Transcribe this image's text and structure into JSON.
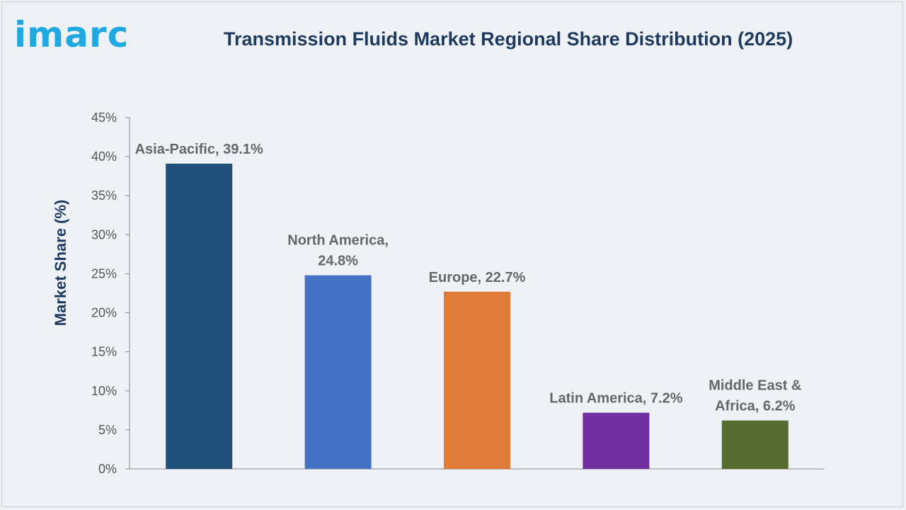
{
  "logo": {
    "text": "imarc"
  },
  "chart_data": {
    "type": "bar",
    "title": "Transmission Fluids Market Regional Share Distribution (2025)",
    "ylabel": "Market Share (%)",
    "xlabel": "",
    "ylim": [
      0,
      45
    ],
    "yticks": [
      {
        "value": 0,
        "label": "0%"
      },
      {
        "value": 5,
        "label": "5%"
      },
      {
        "value": 10,
        "label": "10%"
      },
      {
        "value": 15,
        "label": "15%"
      },
      {
        "value": 20,
        "label": "20%"
      },
      {
        "value": 25,
        "label": "25%"
      },
      {
        "value": 30,
        "label": "30%"
      },
      {
        "value": 35,
        "label": "35%"
      },
      {
        "value": 40,
        "label": "40%"
      },
      {
        "value": 45,
        "label": "45%"
      }
    ],
    "grid": false,
    "categories": [
      "Asia-Pacific",
      "North America",
      "Europe",
      "Latin America",
      "Middle East & Africa"
    ],
    "values": [
      39.1,
      24.8,
      22.7,
      7.2,
      6.2
    ],
    "data_labels": [
      [
        "Asia-Pacific, 39.1%"
      ],
      [
        "North America,",
        "24.8%"
      ],
      [
        "Europe, 22.7%"
      ],
      [
        "Latin America, 7.2%"
      ],
      [
        "Middle East &",
        "Africa, 6.2%"
      ]
    ],
    "colors": [
      "#1f4e79",
      "#4472c4",
      "#e07b39",
      "#7030a0",
      "#556b2f"
    ]
  }
}
